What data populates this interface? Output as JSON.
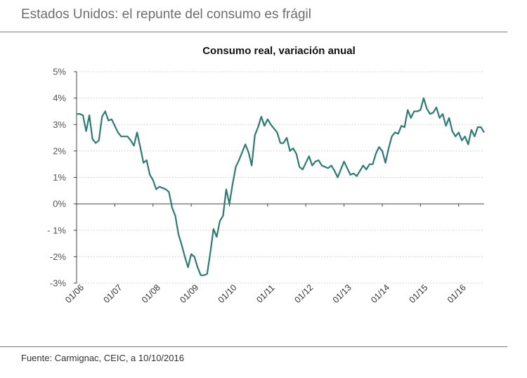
{
  "header": {
    "title": "Estados Unidos: el repunte del consumo es frágil"
  },
  "footer": {
    "source": "Fuente: Carmignac, CEIC, a 10/10/2016"
  },
  "chart_data": {
    "type": "line",
    "title": "Consumo real, variación anual",
    "xlabel": "",
    "ylabel": "",
    "ylim": [
      -3,
      5
    ],
    "yticks": [
      5,
      4,
      3,
      2,
      1,
      0,
      -1,
      -2,
      -3
    ],
    "ytick_labels": [
      "5%",
      "4%",
      "3%",
      "2%",
      "1%",
      "0%",
      "- 1%",
      "-2%",
      "-3%"
    ],
    "x_start": "2006-01",
    "x_end": "2016-08",
    "xtick_labels": [
      "01/06",
      "01/07",
      "01/08",
      "01/09",
      "01/10",
      "01/11",
      "01/12",
      "01/13",
      "01/14",
      "01/15",
      "01/16"
    ],
    "series": [
      {
        "name": "Consumo real, variación anual",
        "color": "#2a7c74",
        "values": [
          3.4,
          3.4,
          3.35,
          2.75,
          3.35,
          2.45,
          2.3,
          2.4,
          3.3,
          3.5,
          3.15,
          3.2,
          2.95,
          2.7,
          2.55,
          2.55,
          2.55,
          2.4,
          2.2,
          2.7,
          2.15,
          1.55,
          1.65,
          1.1,
          0.9,
          0.55,
          0.65,
          0.6,
          0.55,
          0.45,
          -0.15,
          -0.45,
          -1.15,
          -1.55,
          -2.0,
          -2.4,
          -1.9,
          -2.0,
          -2.4,
          -2.7,
          -2.7,
          -2.65,
          -1.85,
          -0.95,
          -1.25,
          -0.65,
          -0.45,
          0.55,
          0.0,
          0.75,
          1.4,
          1.65,
          1.95,
          2.25,
          1.95,
          1.45,
          2.6,
          2.9,
          3.3,
          2.95,
          3.2,
          3.0,
          2.85,
          2.7,
          2.3,
          2.3,
          2.5,
          2.0,
          2.1,
          1.9,
          1.4,
          1.3,
          1.55,
          1.8,
          1.45,
          1.6,
          1.65,
          1.45,
          1.4,
          1.35,
          1.45,
          1.25,
          1.0,
          1.3,
          1.6,
          1.35,
          1.1,
          1.15,
          1.05,
          1.25,
          1.45,
          1.3,
          1.5,
          1.5,
          1.9,
          2.15,
          2.0,
          1.55,
          2.1,
          2.55,
          2.7,
          2.65,
          2.95,
          2.9,
          3.55,
          3.25,
          3.5,
          3.5,
          3.55,
          4.0,
          3.6,
          3.4,
          3.45,
          3.65,
          3.25,
          3.4,
          2.95,
          3.25,
          2.75,
          2.55,
          2.7,
          2.4,
          2.55,
          2.25,
          2.8,
          2.55,
          2.9,
          2.9,
          2.7
        ]
      }
    ]
  }
}
